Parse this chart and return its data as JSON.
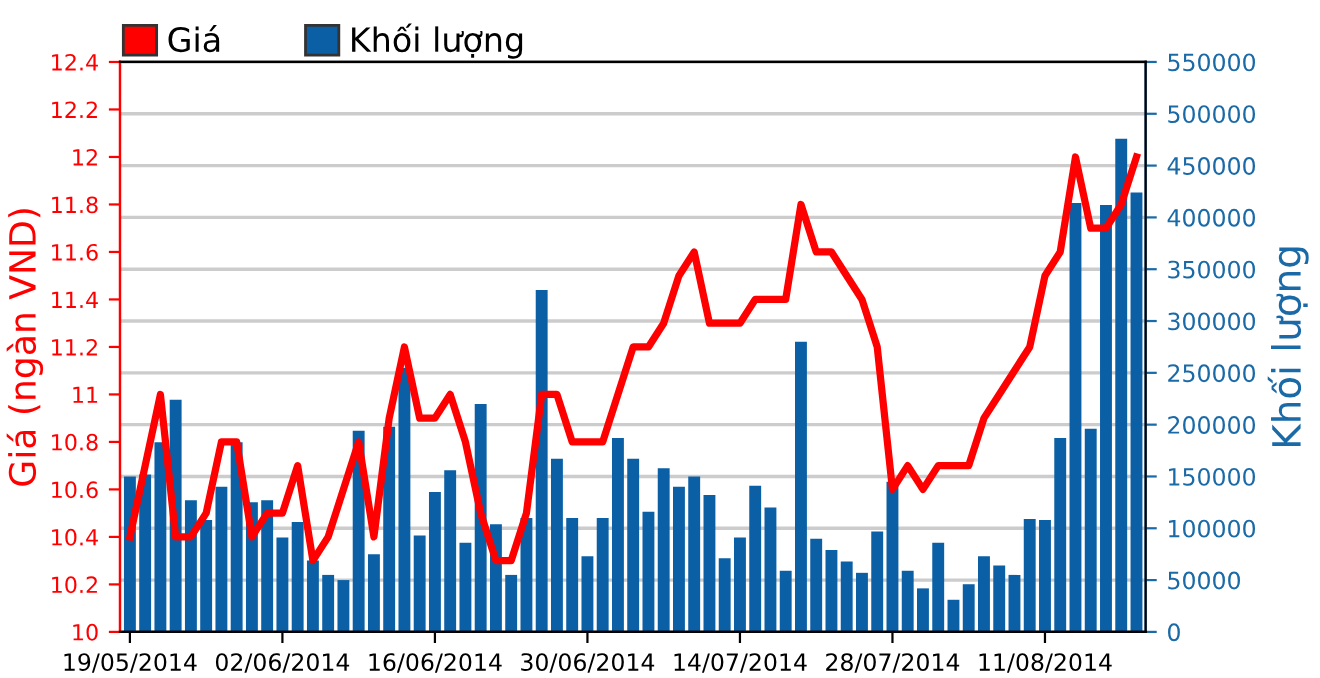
{
  "chart_data": {
    "type": "bar",
    "ylabel": "Giá (ngàn VND)",
    "y2label": "Khối lượng",
    "categories": [
      "19/05/2014",
      null,
      null,
      null,
      null,
      null,
      null,
      null,
      null,
      null,
      "02/06/2014",
      null,
      null,
      null,
      null,
      null,
      null,
      null,
      null,
      null,
      "16/06/2014",
      null,
      null,
      null,
      null,
      null,
      null,
      null,
      null,
      null,
      "30/06/2014",
      null,
      null,
      null,
      null,
      null,
      null,
      null,
      null,
      null,
      "14/07/2014",
      null,
      null,
      null,
      null,
      null,
      null,
      null,
      null,
      null,
      "28/07/2014",
      null,
      null,
      null,
      null,
      null,
      null,
      null,
      null,
      null,
      "11/08/2014",
      null,
      null,
      null,
      null,
      null,
      null
    ],
    "series": [
      {
        "name": "Giá",
        "type": "line",
        "axis": "y",
        "color": "#ff0000",
        "values": [
          10.4,
          10.7,
          11.0,
          10.4,
          10.4,
          10.5,
          10.8,
          10.8,
          10.4,
          10.5,
          10.5,
          10.7,
          10.3,
          10.4,
          10.6,
          10.8,
          10.4,
          10.9,
          11.2,
          10.9,
          10.9,
          11.0,
          10.8,
          10.5,
          10.3,
          10.3,
          10.5,
          11.0,
          11.0,
          10.8,
          10.8,
          10.8,
          11.0,
          11.2,
          11.2,
          11.3,
          11.5,
          11.6,
          11.3,
          11.3,
          11.3,
          11.4,
          11.4,
          11.4,
          11.8,
          11.6,
          11.6,
          11.5,
          11.4,
          11.2,
          10.6,
          10.7,
          10.6,
          10.7,
          10.7,
          10.7,
          10.9,
          11.0,
          11.1,
          11.2,
          11.5,
          11.6,
          12.0,
          11.7,
          11.7,
          11.8,
          12.0
        ]
      },
      {
        "name": "Khối lượng",
        "axis": "y2",
        "color": "#0a5fa5",
        "values": [
          150000,
          152000,
          183000,
          224000,
          127000,
          108000,
          140000,
          183000,
          125000,
          127000,
          91000,
          106000,
          69000,
          55000,
          50000,
          194000,
          75000,
          198000,
          255000,
          93000,
          135000,
          156000,
          86000,
          220000,
          104000,
          55000,
          110000,
          330000,
          167000,
          110000,
          73000,
          110000,
          187000,
          167000,
          116000,
          158000,
          140000,
          150000,
          132000,
          71000,
          91000,
          141000,
          120000,
          59000,
          280000,
          90000,
          79000,
          68000,
          57000,
          97000,
          145000,
          59000,
          42000,
          86000,
          31000,
          46000,
          73000,
          64000,
          55000,
          109000,
          108000,
          187000,
          414000,
          196000,
          412000,
          476000,
          424000
        ]
      }
    ],
    "ylim": [
      10,
      12.4
    ],
    "yticks": [
      10,
      10.2,
      10.4,
      10.6,
      10.8,
      11,
      11.2,
      11.4,
      11.6,
      11.8,
      12,
      12.2,
      12.4
    ],
    "y2lim": [
      0,
      550000
    ],
    "y2ticks": [
      0,
      50000,
      100000,
      150000,
      200000,
      250000,
      300000,
      350000,
      400000,
      450000,
      500000,
      550000
    ],
    "grid": "y",
    "legend": "top left",
    "marker": "none",
    "line_style": "solid"
  }
}
